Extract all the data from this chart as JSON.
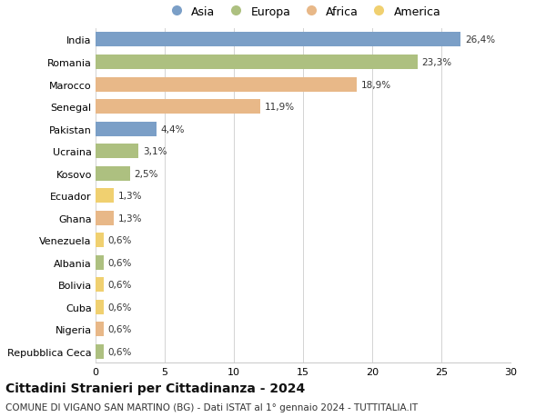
{
  "categories": [
    "India",
    "Romania",
    "Marocco",
    "Senegal",
    "Pakistan",
    "Ucraina",
    "Kosovo",
    "Ecuador",
    "Ghana",
    "Venezuela",
    "Albania",
    "Bolivia",
    "Cuba",
    "Nigeria",
    "Repubblica Ceca"
  ],
  "values": [
    26.4,
    23.3,
    18.9,
    11.9,
    4.4,
    3.1,
    2.5,
    1.3,
    1.3,
    0.6,
    0.6,
    0.6,
    0.6,
    0.6,
    0.6
  ],
  "labels": [
    "26,4%",
    "23,3%",
    "18,9%",
    "11,9%",
    "4,4%",
    "3,1%",
    "2,5%",
    "1,3%",
    "1,3%",
    "0,6%",
    "0,6%",
    "0,6%",
    "0,6%",
    "0,6%",
    "0,6%"
  ],
  "continents": [
    "Asia",
    "Europa",
    "Africa",
    "Africa",
    "Asia",
    "Europa",
    "Europa",
    "America",
    "Africa",
    "America",
    "Europa",
    "America",
    "America",
    "Africa",
    "Europa"
  ],
  "continent_colors": {
    "Asia": "#7b9fc7",
    "Europa": "#adc080",
    "Africa": "#e8b888",
    "America": "#f0d070"
  },
  "legend_order": [
    "Asia",
    "Europa",
    "Africa",
    "America"
  ],
  "title": "Cittadini Stranieri per Cittadinanza - 2024",
  "subtitle": "COMUNE DI VIGANO SAN MARTINO (BG) - Dati ISTAT al 1° gennaio 2024 - TUTTITALIA.IT",
  "xlim": [
    0,
    30
  ],
  "xticks": [
    0,
    5,
    10,
    15,
    20,
    25,
    30
  ],
  "background_color": "#ffffff",
  "grid_color": "#cccccc",
  "title_fontsize": 10,
  "subtitle_fontsize": 7.5,
  "label_fontsize": 7.5,
  "ytick_fontsize": 8,
  "xtick_fontsize": 8,
  "legend_fontsize": 9,
  "bar_height": 0.65
}
